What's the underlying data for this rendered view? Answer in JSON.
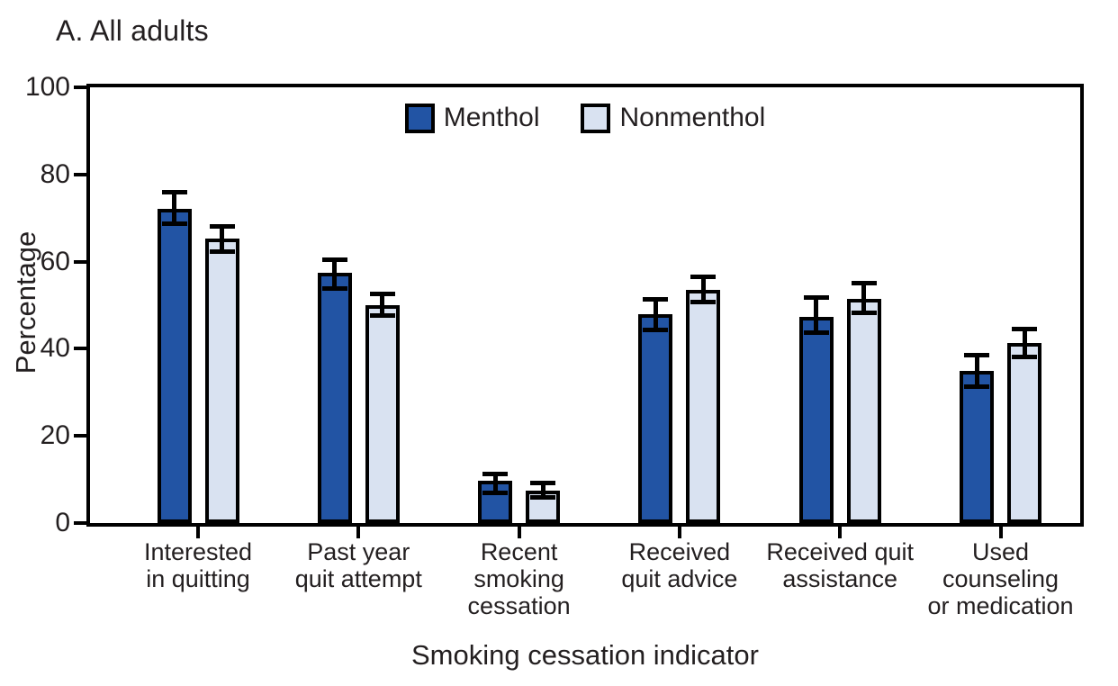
{
  "panel_label": "A. All adults",
  "colors": {
    "menthol": "#2254A4",
    "nonmenthol": "#D9E2F1",
    "axis_line": "#000000",
    "text": "#231F20",
    "background": "#FFFFFF"
  },
  "legend": {
    "items": [
      "Menthol",
      "Nonmenthol"
    ],
    "position": "top-center-inside"
  },
  "chart_data": {
    "type": "bar",
    "title": "A. All adults",
    "xlabel": "Smoking cessation indicator",
    "ylabel": "Percentage",
    "ylim": [
      0,
      100
    ],
    "yticks": [
      0,
      20,
      40,
      60,
      80,
      100
    ],
    "grid": false,
    "framed_plot_box": true,
    "error_bars": true,
    "legend_position": "top-inside",
    "categories": [
      {
        "label": "Interested in quitting",
        "lines": [
          "Interested",
          "in quitting"
        ]
      },
      {
        "label": "Past year quit attempt",
        "lines": [
          "Past year",
          "quit attempt"
        ]
      },
      {
        "label": "Recent smoking cessation",
        "lines": [
          "Recent",
          "smoking",
          "cessation"
        ]
      },
      {
        "label": "Received quit advice",
        "lines": [
          "Received",
          "quit advice"
        ]
      },
      {
        "label": "Received quit assistance",
        "lines": [
          "Received quit",
          "assistance"
        ]
      },
      {
        "label": "Used counseling or medication",
        "lines": [
          "Used",
          "counseling",
          "or medication"
        ]
      }
    ],
    "series": [
      {
        "name": "Menthol",
        "color": "#2254A4",
        "values": [
          72.2,
          57.4,
          9.7,
          47.9,
          47.4,
          35.0
        ],
        "ci_low": [
          68.6,
          53.9,
          7.0,
          44.3,
          43.7,
          31.3
        ],
        "ci_high": [
          75.9,
          60.5,
          11.2,
          51.4,
          51.7,
          38.6
        ]
      },
      {
        "name": "Nonmenthol",
        "color": "#D9E2F1",
        "values": [
          65.3,
          50.1,
          7.5,
          53.6,
          51.5,
          41.3
        ],
        "ci_low": [
          62.2,
          47.6,
          5.9,
          50.8,
          48.2,
          38.1
        ],
        "ci_high": [
          68.0,
          52.5,
          9.1,
          56.6,
          55.0,
          44.6
        ]
      }
    ]
  }
}
